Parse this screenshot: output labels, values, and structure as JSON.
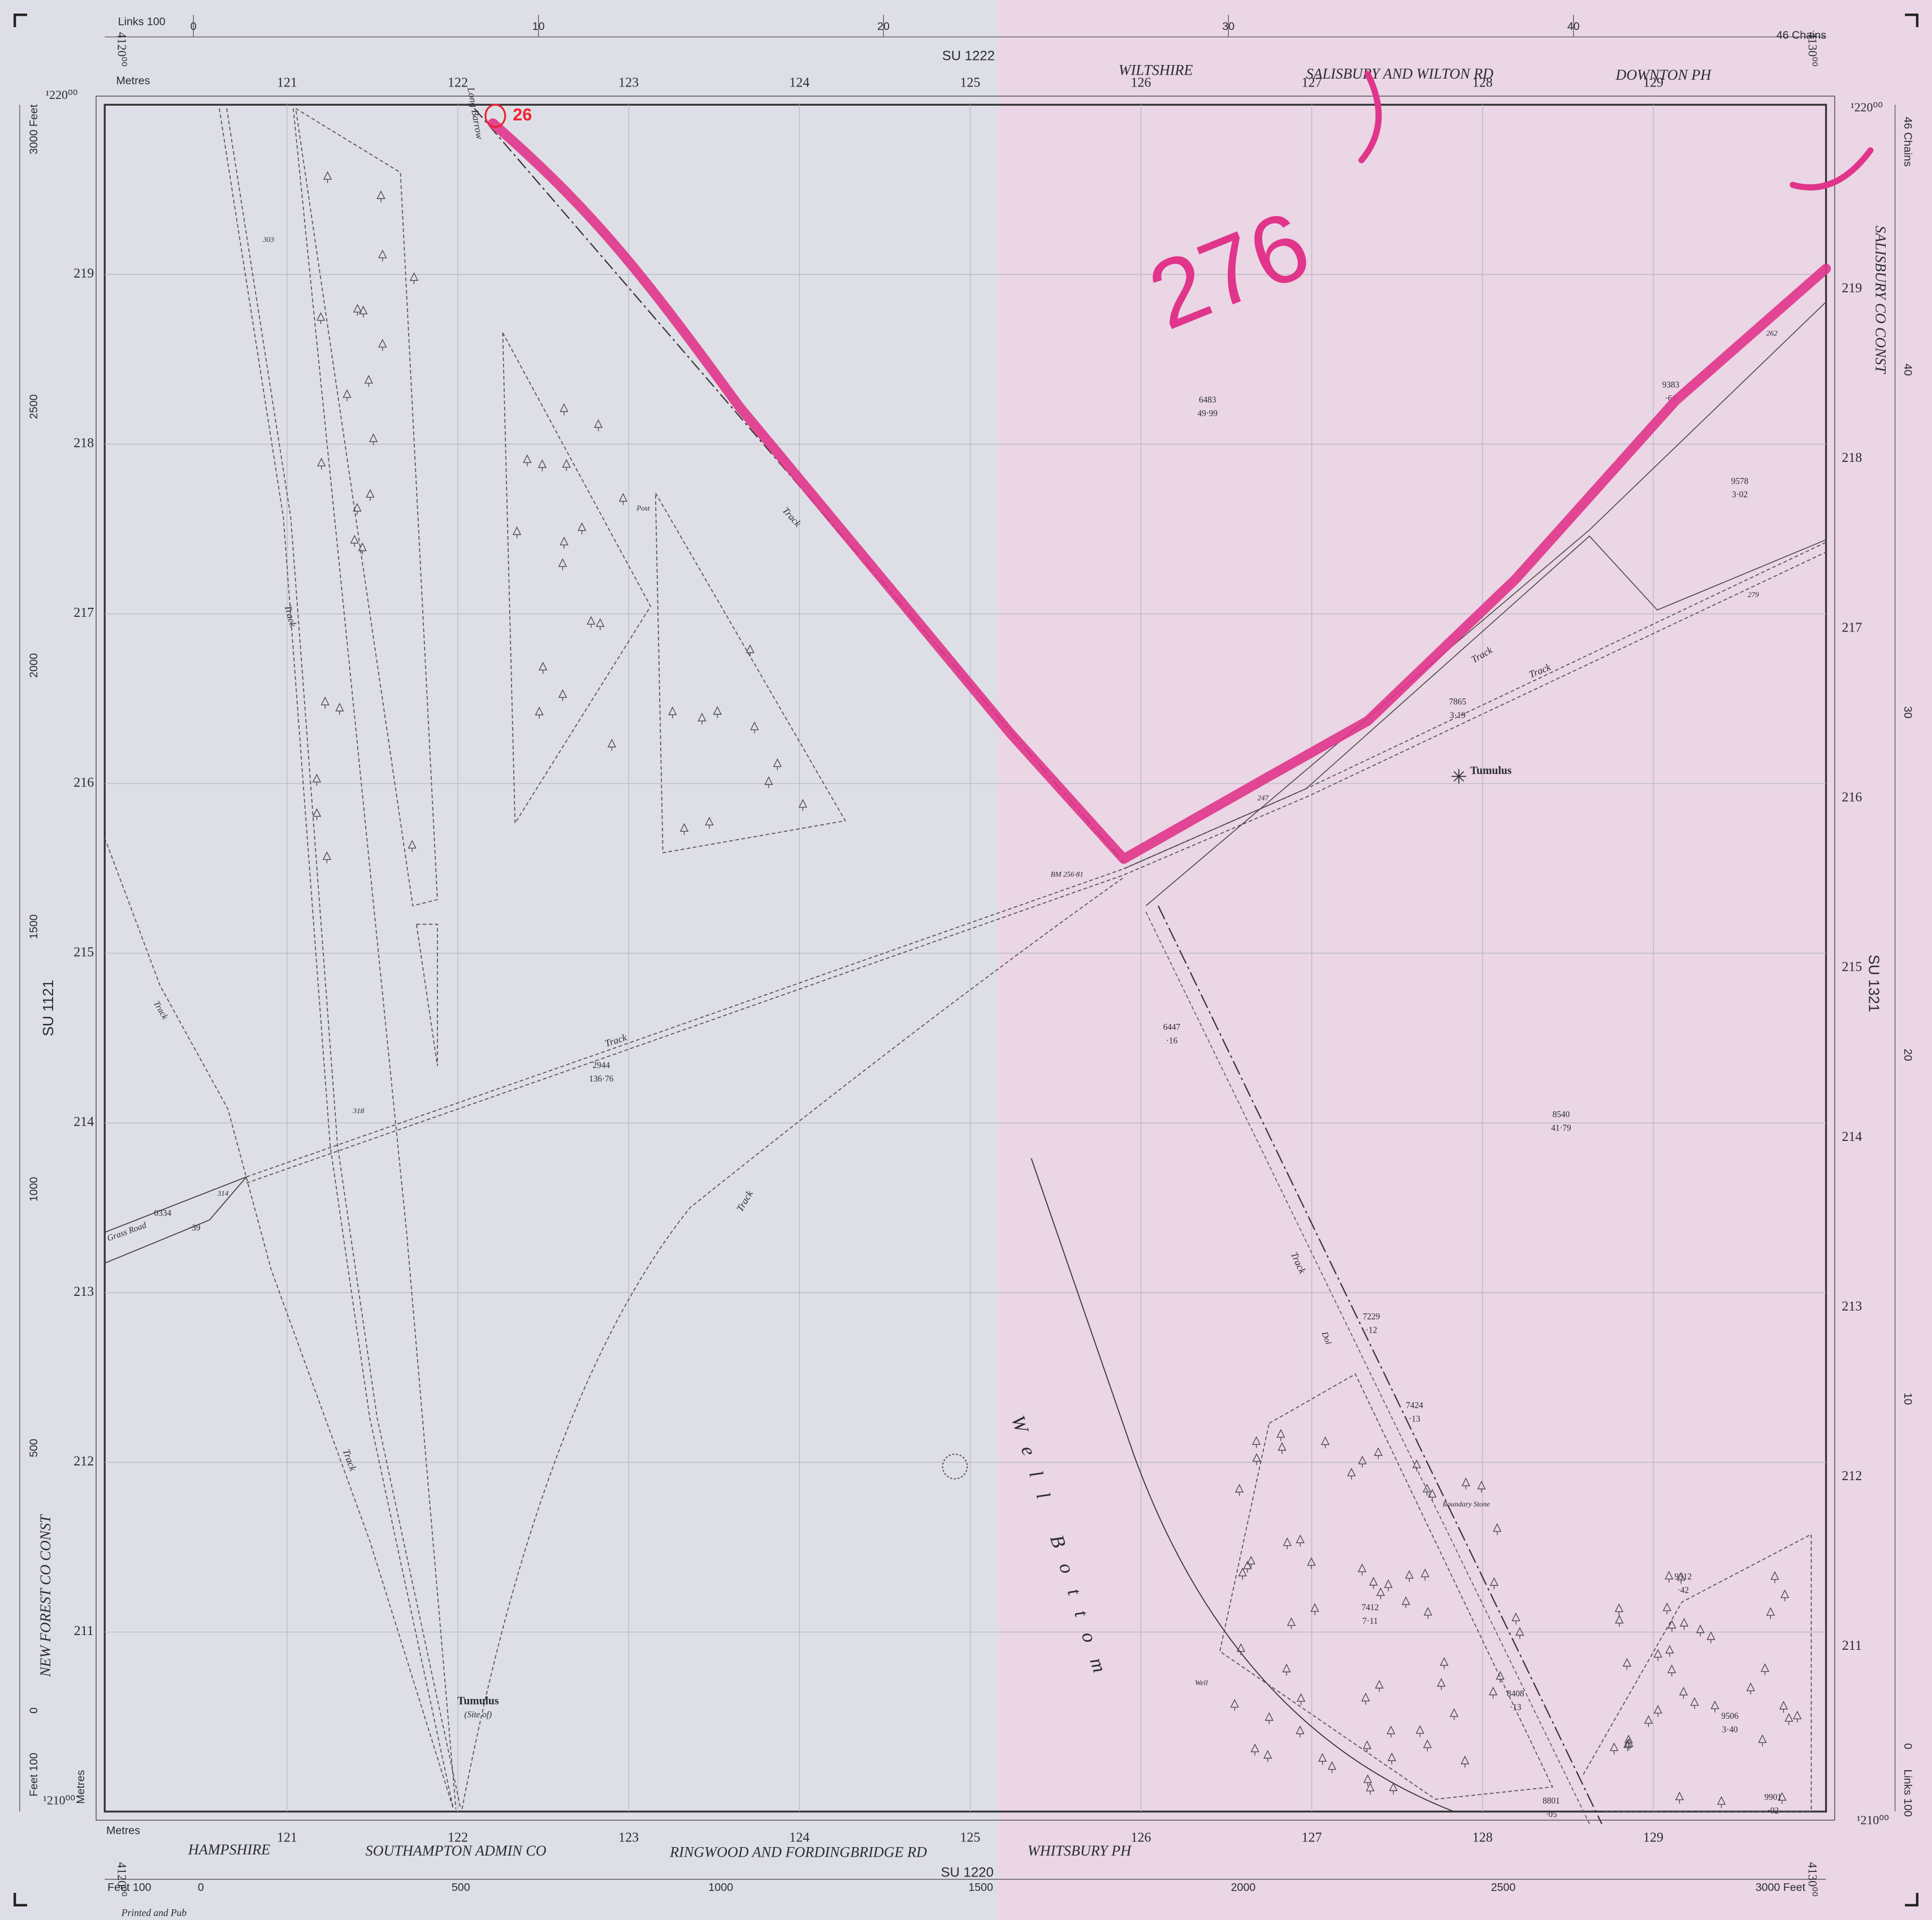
{
  "margins": {
    "links_top": "Links 100",
    "chains_top": "46 Chains",
    "sheet_north": "SU 1222",
    "metres_top": "Metres",
    "county_north": "WILTSHIRE",
    "rd_north": "SALISBURY AND WILTON RD",
    "ph_north": "DOWNTON PH",
    "sheet_west": "SU 1121",
    "sheet_east": "SU 1321",
    "const_west": "NEW FOREST CO CONST",
    "const_east": "SALISBURY CO CONST",
    "county_south": "HAMPSHIRE",
    "admin_south": "SOUTHAMPTON ADMIN CO",
    "rd_south": "RINGWOOD AND FORDINGBRIDGE RD",
    "ph_south": "WHITSBURY PH",
    "sheet_south": "SU 1220",
    "metres_bottom": "Metres",
    "metres_left": "Metres",
    "printed": "Printed and Pub"
  },
  "corners": {
    "nw": "¹220⁰⁰",
    "ne": "¹220⁰⁰",
    "sw": "¹210⁰⁰",
    "se": "¹210⁰⁰",
    "easting_nw": "4120⁰⁰",
    "easting_ne": "4130⁰⁰",
    "easting_sw": "4120⁰⁰",
    "easting_se": "4130⁰⁰"
  },
  "grid": {
    "eastings": [
      "121",
      "122",
      "123",
      "124",
      "125",
      "126",
      "127",
      "128",
      "129"
    ],
    "northings": [
      "219",
      "218",
      "217",
      "216",
      "215",
      "214",
      "213",
      "212",
      "211"
    ]
  },
  "scales": {
    "chains_top": [
      "0",
      "10",
      "20",
      "30",
      "40"
    ],
    "feet_left": [
      "3000 Feet",
      "2500",
      "2000",
      "1500",
      "1000",
      "500",
      "0",
      "Feet 100"
    ],
    "feet_bottom": [
      "Feet 100",
      "0",
      "500",
      "1000",
      "1500",
      "2000",
      "2500",
      "3000 Feet"
    ],
    "chains_right": [
      "46 Chains",
      "40",
      "30",
      "20",
      "10",
      "0",
      "Links 100"
    ]
  },
  "features": [
    "Long Barrow",
    "Track",
    "Track",
    "Track",
    "Track",
    "Track",
    "Track",
    "Track",
    "Track",
    "Track",
    "Post",
    "303",
    "318",
    "314",
    "0334",
    "·39",
    "Grass Road",
    "2944",
    "136·76",
    "BM 256·81",
    "247",
    "6483",
    "49·99",
    "Tumulus",
    "7865",
    "3·19",
    "9383",
    "·61",
    "262",
    "9578",
    "3·02",
    "279",
    "6447",
    "·16",
    "8540",
    "41·79",
    "Well Bottom",
    "7229",
    "·12",
    "7424",
    "·13",
    "Boundary Stone",
    "7412",
    "7·11",
    "Well",
    "8408",
    "·13",
    "8801",
    "·05",
    "9312",
    "·42",
    "9506",
    "3·40",
    "9901",
    "·02",
    "Tumulus",
    "(Site of)",
    "Dol"
  ],
  "annotations": {
    "sheet_number": "276",
    "parcel": "26"
  }
}
